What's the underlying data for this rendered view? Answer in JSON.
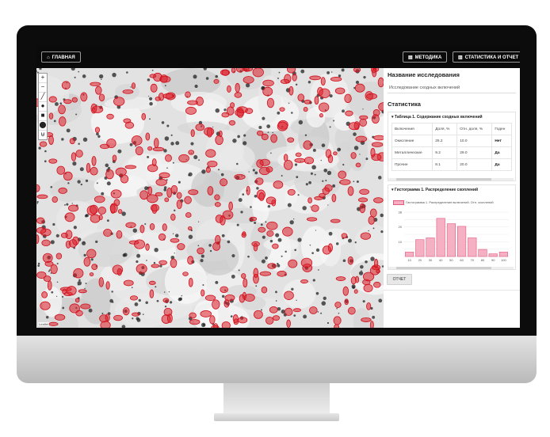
{
  "topbar": {
    "home": {
      "icon": "home-icon",
      "label": "ГЛАВНАЯ"
    },
    "method": {
      "icon": "document-icon",
      "label": "МЕТОДИКА"
    },
    "stats": {
      "icon": "bar-chart-icon",
      "label": "СТАТИСТИКА И ОТЧЕТ"
    }
  },
  "map": {
    "controls": [
      "+",
      "−",
      "╱",
      "●",
      "■",
      "⬤",
      "⊎"
    ],
    "attribution": "Leaflet"
  },
  "panel": {
    "title": "Название исследования",
    "subtitle": "Исследование сходных включений",
    "stats_heading": "Статистика",
    "table1": {
      "title": "Таблица 1. Содержание сходных включений",
      "headers": [
        "Включения",
        "Доля, %",
        "Отн. доля, %",
        "Годен"
      ],
      "rows": [
        [
          "Окисление",
          "25.2",
          "10.0",
          "Нет"
        ],
        [
          "Металлические",
          "9.2",
          "29.0",
          "Да"
        ],
        [
          "Прочие",
          "8.1",
          "20.0",
          "Да"
        ]
      ]
    },
    "hist_title": "Гистограмма 1. Распределение скоплений",
    "report_button": "ОТЧЕТ"
  },
  "chart_data": {
    "type": "bar",
    "legend": "Гистограмма 1. Распределение включений. Отн. скоплений",
    "categories": [
      "10",
      "20",
      "30",
      "40",
      "50",
      "60",
      "70",
      "80",
      "90",
      "100"
    ],
    "values": [
      5,
      19,
      21,
      43,
      37,
      34,
      21,
      8,
      3,
      5
    ],
    "ytick_labels": [
      "38",
      "",
      "20",
      "",
      "10",
      ""
    ],
    "ylim": [
      0,
      50
    ],
    "colors": {
      "fill": "#f6b0c4",
      "stroke": "#e05a7d"
    }
  }
}
